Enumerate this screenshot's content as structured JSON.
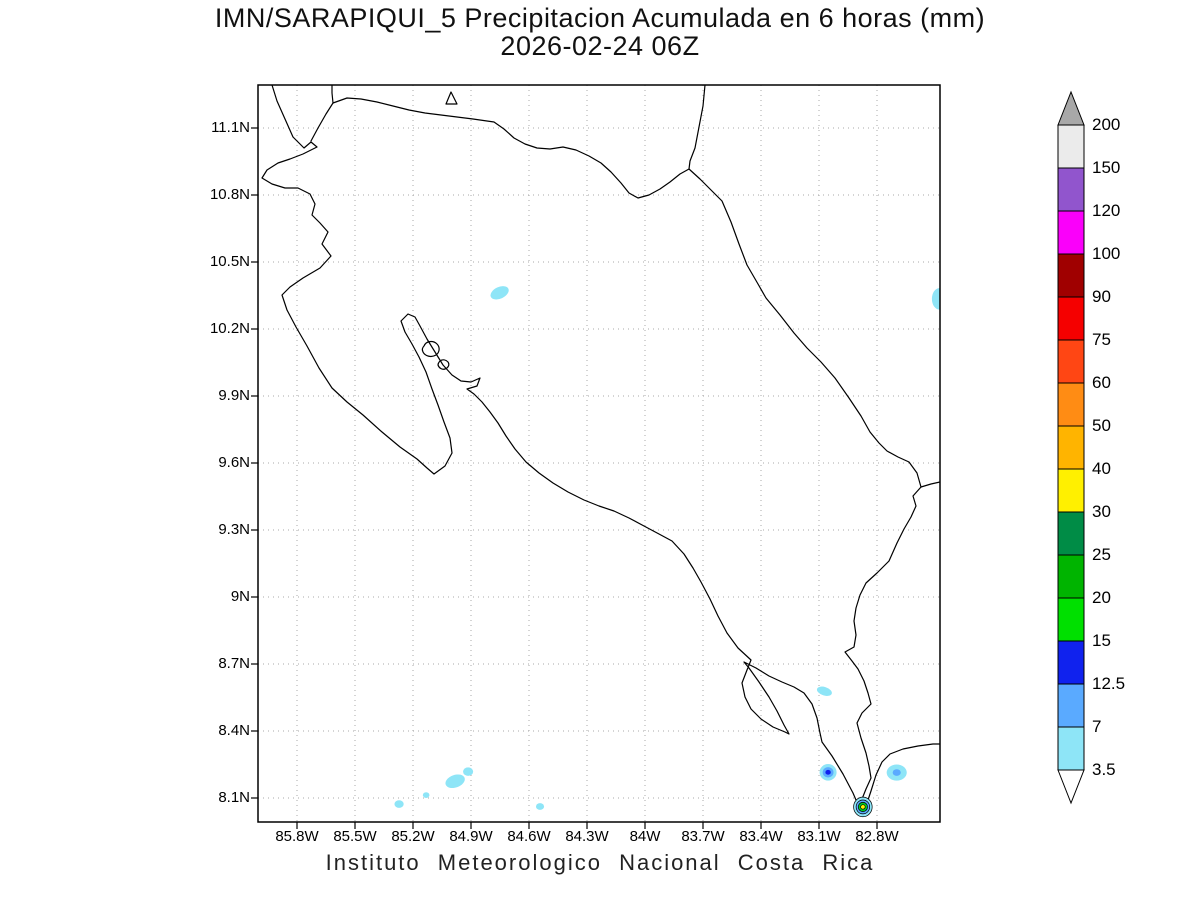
{
  "title": {
    "line1": "IMN/SARAPIQUI_5 Precipitacion Acumulada en 6 horas (mm)",
    "line2": "2026-02-24 06Z"
  },
  "footer": "Instituto Meteorologico Nacional Costa Rica",
  "axes": {
    "y_labels": [
      "11.1N",
      "10.8N",
      "10.5N",
      "10.2N",
      "9.9N",
      "9.6N",
      "9.3N",
      "9N",
      "8.7N",
      "8.4N",
      "8.1N"
    ],
    "x_labels": [
      "85.8W",
      "85.5W",
      "85.2W",
      "84.9W",
      "84.6W",
      "84.3W",
      "84W",
      "83.7W",
      "83.4W",
      "83.1W",
      "82.8W"
    ]
  },
  "colorbar": {
    "tick_labels": [
      "200",
      "150",
      "120",
      "100",
      "90",
      "75",
      "60",
      "50",
      "40",
      "30",
      "25",
      "20",
      "15",
      "12.5",
      "7",
      "3.5"
    ],
    "segment_colors_top_to_bottom": [
      "#ebebeb",
      "#9155cd",
      "#fa00fa",
      "#a00000",
      "#f50000",
      "#ff4614",
      "#ff8c14",
      "#ffb400",
      "#fff000",
      "#008c46",
      "#00b400",
      "#00e000",
      "#1022ee",
      "#5aaaff",
      "#8ee5f7"
    ],
    "above_max_color": "#a8a8a8",
    "below_min_color": "#ffffff"
  },
  "chart_data": {
    "type": "heatmap",
    "title": "IMN/SARAPIQUI_5 Precipitacion Acumulada en 6 horas (mm)",
    "subtitle": "2026-02-24 06Z",
    "region": "Costa Rica",
    "units": "mm",
    "lon_range_deg_west": [
      86.0,
      82.47
    ],
    "lat_range_deg_north": [
      7.99,
      11.29
    ],
    "grid_interval_deg": 0.3,
    "scale_levels_mm": [
      3.5,
      7,
      12.5,
      15,
      20,
      25,
      30,
      40,
      50,
      60,
      75,
      90,
      100,
      120,
      150,
      200
    ],
    "precip_cells": [
      {
        "lon": -84.752,
        "lat": 10.362,
        "rot": -25,
        "layers": [
          {
            "rx": 0.05,
            "ry": 0.026,
            "fill": "#8ee5f7"
          }
        ]
      },
      {
        "lon": -82.478,
        "lat": 10.335,
        "rot": 0,
        "layers": [
          {
            "rx": 0.038,
            "ry": 0.048,
            "fill": "#8ee5f7"
          }
        ]
      },
      {
        "lon": -85.272,
        "lat": 8.073,
        "rot": 0,
        "layers": [
          {
            "rx": 0.024,
            "ry": 0.017,
            "fill": "#8ee5f7"
          }
        ]
      },
      {
        "lon": -85.132,
        "lat": 8.113,
        "rot": 0,
        "layers": [
          {
            "rx": 0.017,
            "ry": 0.013,
            "fill": "#8ee5f7"
          }
        ]
      },
      {
        "lon": -84.982,
        "lat": 8.175,
        "rot": -20,
        "layers": [
          {
            "rx": 0.052,
            "ry": 0.028,
            "fill": "#8ee5f7"
          }
        ]
      },
      {
        "lon": -84.915,
        "lat": 8.218,
        "rot": 0,
        "layers": [
          {
            "rx": 0.026,
            "ry": 0.019,
            "fill": "#8ee5f7"
          }
        ]
      },
      {
        "lon": -84.543,
        "lat": 8.062,
        "rot": 0,
        "layers": [
          {
            "rx": 0.021,
            "ry": 0.015,
            "fill": "#8ee5f7"
          }
        ]
      },
      {
        "lon": -83.072,
        "lat": 8.578,
        "rot": 18,
        "layers": [
          {
            "rx": 0.04,
            "ry": 0.019,
            "fill": "#8ee5f7"
          }
        ]
      },
      {
        "lon": -83.053,
        "lat": 8.215,
        "rot": 0,
        "layers": [
          {
            "rx": 0.044,
            "ry": 0.037,
            "fill": "#8ee5f7"
          },
          {
            "rx": 0.028,
            "ry": 0.023,
            "fill": "#5aaaff"
          },
          {
            "rx": 0.014,
            "ry": 0.011,
            "fill": "#1022ee"
          }
        ]
      },
      {
        "lon": -82.698,
        "lat": 8.214,
        "rot": 0,
        "layers": [
          {
            "rx": 0.052,
            "ry": 0.036,
            "fill": "#8ee5f7"
          },
          {
            "rx": 0.021,
            "ry": 0.015,
            "fill": "#5aaaff"
          }
        ]
      },
      {
        "lon": -82.873,
        "lat": 8.06,
        "rot": 0,
        "layers": [
          {
            "rx": 0.048,
            "ry": 0.044,
            "fill": "#8ee5f7",
            "stroke": true
          },
          {
            "rx": 0.035,
            "ry": 0.031,
            "fill": "#5aaaff",
            "stroke": true
          },
          {
            "rx": 0.024,
            "ry": 0.021,
            "fill": "#00c828",
            "stroke": true
          },
          {
            "rx": 0.012,
            "ry": 0.01,
            "fill": "#fff000",
            "stroke": true
          }
        ]
      }
    ]
  }
}
